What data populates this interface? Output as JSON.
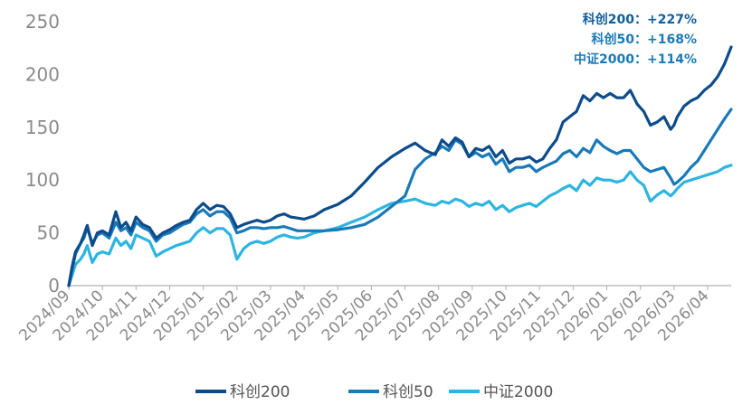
{
  "chart_data": {
    "type": "line",
    "title": "",
    "xlabel": "",
    "ylabel": "",
    "ylim": [
      0,
      250
    ],
    "yticks": [
      0,
      50,
      100,
      150,
      200,
      250
    ],
    "grid": false,
    "legend_position": "bottom",
    "x_tick_labels": [
      "2024/09",
      "2024/10",
      "2024/11",
      "2024/12",
      "2025/01",
      "2025/02",
      "2025/03",
      "2025/04",
      "2025/05",
      "2025/06",
      "2025/07",
      "2025/08",
      "2025/09",
      "2025/10",
      "2025/11",
      "2025/12",
      "2026/01",
      "2026/02",
      "2026/03",
      "2026/04"
    ],
    "x_range": [
      0,
      19.7
    ],
    "annotations": [
      {
        "text": "科创200：+227%",
        "color": "#0f5e9c"
      },
      {
        "text": "科创50：+168%",
        "color": "#1a7ab8"
      },
      {
        "text": "中证2000：+114%",
        "color": "#1a7ab8"
      }
    ],
    "series": [
      {
        "name": "科创200",
        "color": "#0d4c8b",
        "x": [
          0,
          0.1,
          0.2,
          0.35,
          0.45,
          0.55,
          0.7,
          0.85,
          1.0,
          1.2,
          1.4,
          1.55,
          1.7,
          1.85,
          2.0,
          2.2,
          2.4,
          2.6,
          2.8,
          3.0,
          3.2,
          3.4,
          3.6,
          3.8,
          4.0,
          4.2,
          4.4,
          4.6,
          4.8,
          5.0,
          5.2,
          5.4,
          5.6,
          5.8,
          6.0,
          6.2,
          6.4,
          6.6,
          6.8,
          7.0,
          7.3,
          7.6,
          8.0,
          8.4,
          8.8,
          9.2,
          9.6,
          10.0,
          10.3,
          10.6,
          10.9,
          11.1,
          11.3,
          11.5,
          11.7,
          11.9,
          12.1,
          12.3,
          12.5,
          12.7,
          12.9,
          13.1,
          13.3,
          13.5,
          13.7,
          13.9,
          14.1,
          14.3,
          14.5,
          14.7,
          14.9,
          15.1,
          15.3,
          15.5,
          15.7,
          15.9,
          16.1,
          16.3,
          16.5,
          16.7,
          16.9,
          17.1,
          17.3,
          17.5,
          17.7,
          17.9,
          18.0,
          18.1,
          18.3,
          18.5,
          18.7,
          18.9,
          19.1,
          19.3,
          19.5,
          19.7
        ],
        "values": [
          0,
          18,
          32,
          40,
          48,
          57,
          38,
          50,
          52,
          48,
          70,
          55,
          60,
          52,
          65,
          58,
          55,
          45,
          50,
          53,
          57,
          60,
          62,
          72,
          78,
          72,
          76,
          75,
          68,
          55,
          58,
          60,
          62,
          60,
          62,
          66,
          68,
          65,
          64,
          63,
          66,
          72,
          77,
          85,
          98,
          112,
          122,
          130,
          135,
          128,
          124,
          138,
          132,
          140,
          136,
          122,
          130,
          128,
          132,
          122,
          128,
          116,
          120,
          120,
          122,
          117,
          120,
          130,
          138,
          155,
          160,
          165,
          180,
          175,
          182,
          178,
          182,
          178,
          178,
          185,
          172,
          165,
          152,
          155,
          160,
          148,
          152,
          160,
          170,
          175,
          178,
          185,
          190,
          198,
          210,
          226
        ]
      },
      {
        "name": "科创50",
        "color": "#1a7ab8",
        "x": [
          0,
          0.1,
          0.2,
          0.35,
          0.45,
          0.55,
          0.7,
          0.85,
          1.0,
          1.2,
          1.4,
          1.55,
          1.7,
          1.85,
          2.0,
          2.2,
          2.4,
          2.6,
          2.8,
          3.0,
          3.2,
          3.4,
          3.6,
          3.8,
          4.0,
          4.2,
          4.4,
          4.6,
          4.8,
          5.0,
          5.2,
          5.4,
          5.6,
          5.8,
          6.0,
          6.2,
          6.4,
          6.6,
          6.8,
          7.0,
          7.3,
          7.6,
          8.0,
          8.4,
          8.8,
          9.2,
          9.6,
          10.0,
          10.3,
          10.6,
          10.9,
          11.1,
          11.3,
          11.5,
          11.7,
          11.9,
          12.1,
          12.3,
          12.5,
          12.7,
          12.9,
          13.1,
          13.3,
          13.5,
          13.7,
          13.9,
          14.1,
          14.3,
          14.5,
          14.7,
          14.9,
          15.1,
          15.3,
          15.5,
          15.7,
          15.9,
          16.1,
          16.3,
          16.5,
          16.7,
          16.9,
          17.1,
          17.3,
          17.5,
          17.7,
          17.9,
          18.0,
          18.1,
          18.3,
          18.5,
          18.7,
          18.9,
          19.1,
          19.3,
          19.5,
          19.7
        ],
        "values": [
          0,
          15,
          30,
          40,
          45,
          55,
          40,
          48,
          50,
          45,
          60,
          52,
          55,
          48,
          60,
          55,
          52,
          42,
          48,
          50,
          54,
          58,
          60,
          68,
          72,
          66,
          70,
          70,
          64,
          50,
          52,
          55,
          55,
          54,
          55,
          55,
          56,
          54,
          52,
          52,
          52,
          52,
          53,
          55,
          58,
          65,
          75,
          85,
          110,
          120,
          126,
          132,
          128,
          138,
          134,
          122,
          126,
          122,
          125,
          115,
          120,
          108,
          112,
          112,
          114,
          108,
          112,
          115,
          118,
          125,
          128,
          122,
          130,
          126,
          138,
          132,
          128,
          125,
          128,
          128,
          120,
          112,
          108,
          110,
          112,
          102,
          96,
          98,
          104,
          112,
          118,
          128,
          138,
          148,
          158,
          167
        ]
      },
      {
        "name": "中证2000",
        "color": "#2cb5e0",
        "x": [
          0,
          0.1,
          0.2,
          0.35,
          0.45,
          0.55,
          0.7,
          0.85,
          1.0,
          1.2,
          1.4,
          1.55,
          1.7,
          1.85,
          2.0,
          2.2,
          2.4,
          2.6,
          2.8,
          3.0,
          3.2,
          3.4,
          3.6,
          3.8,
          4.0,
          4.2,
          4.4,
          4.6,
          4.8,
          5.0,
          5.2,
          5.4,
          5.6,
          5.8,
          6.0,
          6.2,
          6.4,
          6.6,
          6.8,
          7.0,
          7.3,
          7.6,
          8.0,
          8.4,
          8.8,
          9.2,
          9.6,
          10.0,
          10.3,
          10.6,
          10.9,
          11.1,
          11.3,
          11.5,
          11.7,
          11.9,
          12.1,
          12.3,
          12.5,
          12.7,
          12.9,
          13.1,
          13.3,
          13.5,
          13.7,
          13.9,
          14.1,
          14.3,
          14.5,
          14.7,
          14.9,
          15.1,
          15.3,
          15.5,
          15.7,
          15.9,
          16.1,
          16.3,
          16.5,
          16.7,
          16.9,
          17.1,
          17.3,
          17.5,
          17.7,
          17.9,
          18.0,
          18.1,
          18.3,
          18.5,
          18.7,
          18.9,
          19.1,
          19.3,
          19.5,
          19.7
        ],
        "values": [
          0,
          10,
          20,
          25,
          30,
          38,
          22,
          30,
          32,
          30,
          45,
          38,
          42,
          35,
          48,
          45,
          42,
          28,
          32,
          35,
          38,
          40,
          42,
          50,
          55,
          50,
          54,
          54,
          48,
          25,
          35,
          40,
          42,
          40,
          42,
          46,
          48,
          46,
          45,
          46,
          50,
          52,
          55,
          60,
          65,
          72,
          78,
          80,
          82,
          78,
          76,
          80,
          78,
          82,
          80,
          75,
          78,
          76,
          80,
          72,
          76,
          70,
          74,
          76,
          78,
          75,
          80,
          85,
          88,
          92,
          95,
          90,
          100,
          95,
          102,
          100,
          100,
          98,
          100,
          108,
          100,
          95,
          80,
          86,
          90,
          85,
          88,
          92,
          98,
          100,
          102,
          104,
          106,
          108,
          112,
          114
        ]
      }
    ]
  }
}
